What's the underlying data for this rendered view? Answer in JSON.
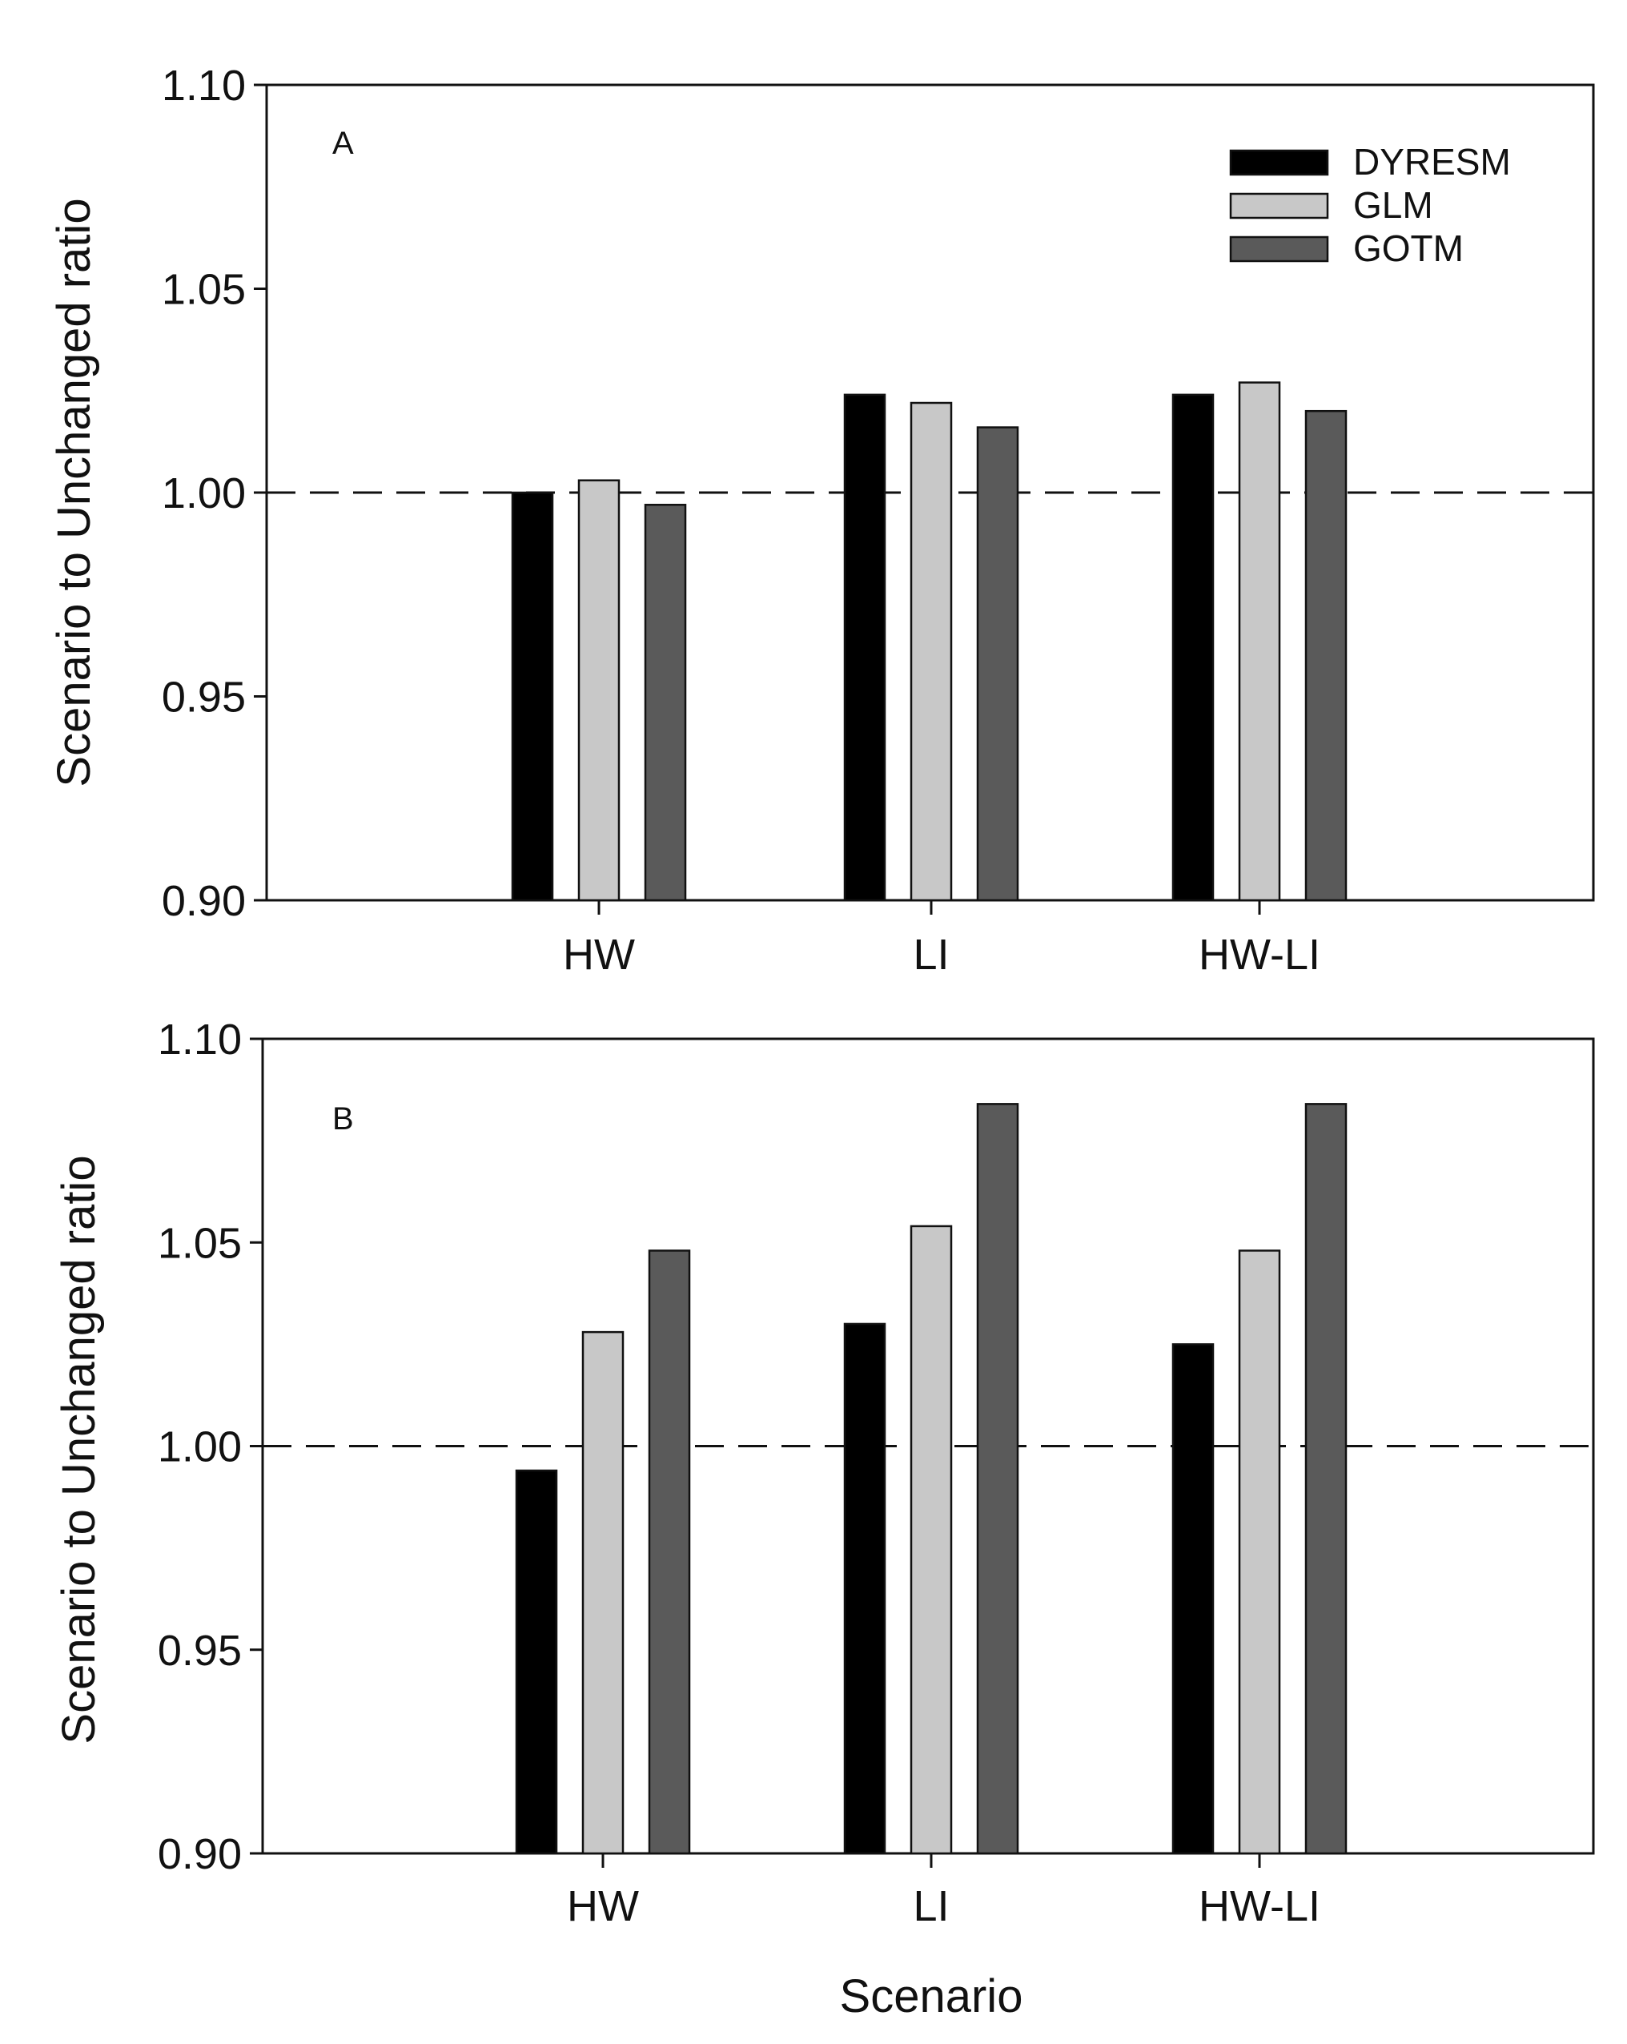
{
  "chart_data": [
    {
      "type": "bar",
      "panel": "A",
      "categories": [
        "HW",
        "LI",
        "HW-LI"
      ],
      "series": [
        {
          "name": "DYRESM",
          "color": "#000000",
          "values": [
            1.0,
            1.024,
            1.024
          ]
        },
        {
          "name": "GLM",
          "color": "#c8c8c8",
          "values": [
            1.003,
            1.022,
            1.027
          ]
        },
        {
          "name": "GOTM",
          "color": "#5a5a5a",
          "values": [
            0.997,
            1.016,
            1.02
          ]
        }
      ],
      "ylabel": "Scenario to Unchanged ratio",
      "xlabel": "",
      "ylim": [
        0.9,
        1.1
      ],
      "yticks": [
        "0.90",
        "0.95",
        "1.00",
        "1.05",
        "1.10"
      ],
      "reference_line": 1.0,
      "legend": {
        "placement": "top-right",
        "entries": [
          "DYRESM",
          "GLM",
          "GOTM"
        ]
      }
    },
    {
      "type": "bar",
      "panel": "B",
      "categories": [
        "HW",
        "LI",
        "HW-LI"
      ],
      "series": [
        {
          "name": "DYRESM",
          "color": "#000000",
          "values": [
            0.994,
            1.03,
            1.025
          ]
        },
        {
          "name": "GLM",
          "color": "#c8c8c8",
          "values": [
            1.028,
            1.054,
            1.048
          ]
        },
        {
          "name": "GOTM",
          "color": "#5a5a5a",
          "values": [
            1.048,
            1.084,
            1.084
          ]
        }
      ],
      "ylabel": "Scenario to Unchanged ratio",
      "xlabel": "Scenario",
      "ylim": [
        0.9,
        1.1
      ],
      "yticks": [
        "0.90",
        "0.95",
        "1.00",
        "1.05",
        "1.10"
      ],
      "reference_line": 1.0
    }
  ]
}
